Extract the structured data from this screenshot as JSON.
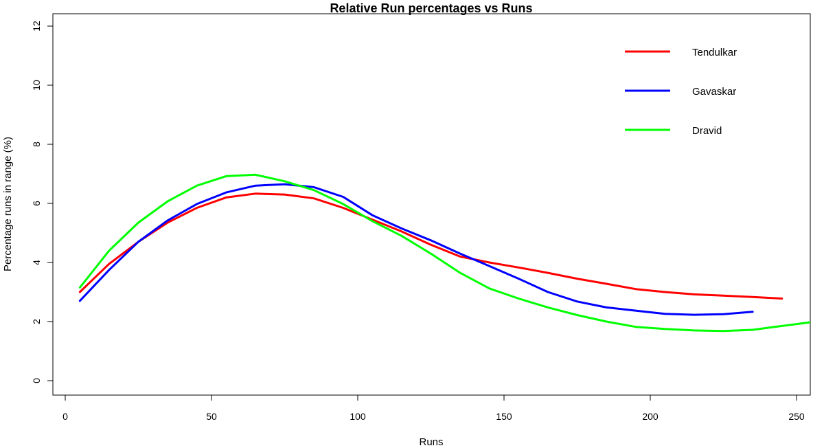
{
  "chart_data": {
    "type": "line",
    "title": "Relative Run percentages vs Runs",
    "xlabel": "Runs",
    "ylabel": "Percentage runs in range (%)",
    "xlim": [
      0,
      255
    ],
    "ylim": [
      0,
      12.5
    ],
    "xticks": [
      0,
      50,
      100,
      150,
      200,
      250
    ],
    "yticks": [
      0,
      2,
      4,
      6,
      8,
      10,
      12
    ],
    "legend_position": "top-right",
    "grid": false,
    "series": [
      {
        "name": "Tendulkar",
        "color": "#ff0000",
        "x": [
          5,
          15,
          25,
          35,
          45,
          55,
          65,
          75,
          85,
          95,
          105,
          115,
          125,
          135,
          145,
          155,
          165,
          175,
          185,
          195,
          205,
          215,
          225,
          235,
          245
        ],
        "y": [
          3.0,
          3.95,
          4.7,
          5.35,
          5.85,
          6.2,
          6.33,
          6.3,
          6.17,
          5.85,
          5.45,
          5.05,
          4.6,
          4.2,
          4.0,
          3.83,
          3.65,
          3.45,
          3.28,
          3.1,
          3.0,
          2.92,
          2.88,
          2.83,
          2.78
        ]
      },
      {
        "name": "Gavaskar",
        "color": "#0000ff",
        "x": [
          5,
          15,
          25,
          35,
          45,
          55,
          65,
          75,
          85,
          95,
          105,
          115,
          125,
          135,
          145,
          155,
          165,
          175,
          185,
          195,
          205,
          215,
          225,
          235
        ],
        "y": [
          2.7,
          3.75,
          4.7,
          5.42,
          5.98,
          6.37,
          6.6,
          6.65,
          6.55,
          6.22,
          5.6,
          5.15,
          4.75,
          4.3,
          3.88,
          3.45,
          3.0,
          2.68,
          2.48,
          2.37,
          2.26,
          2.23,
          2.25,
          2.33
        ]
      },
      {
        "name": "Dravid",
        "color": "#00ff00",
        "x": [
          5,
          15,
          25,
          35,
          45,
          55,
          65,
          75,
          85,
          95,
          105,
          115,
          125,
          135,
          145,
          155,
          165,
          175,
          185,
          195,
          205,
          215,
          225,
          235,
          245,
          255
        ],
        "y": [
          3.15,
          4.4,
          5.35,
          6.07,
          6.6,
          6.92,
          6.97,
          6.75,
          6.45,
          5.98,
          5.4,
          4.9,
          4.3,
          3.65,
          3.12,
          2.78,
          2.48,
          2.22,
          2.0,
          1.82,
          1.75,
          1.7,
          1.68,
          1.72,
          1.85,
          1.98
        ]
      }
    ]
  }
}
